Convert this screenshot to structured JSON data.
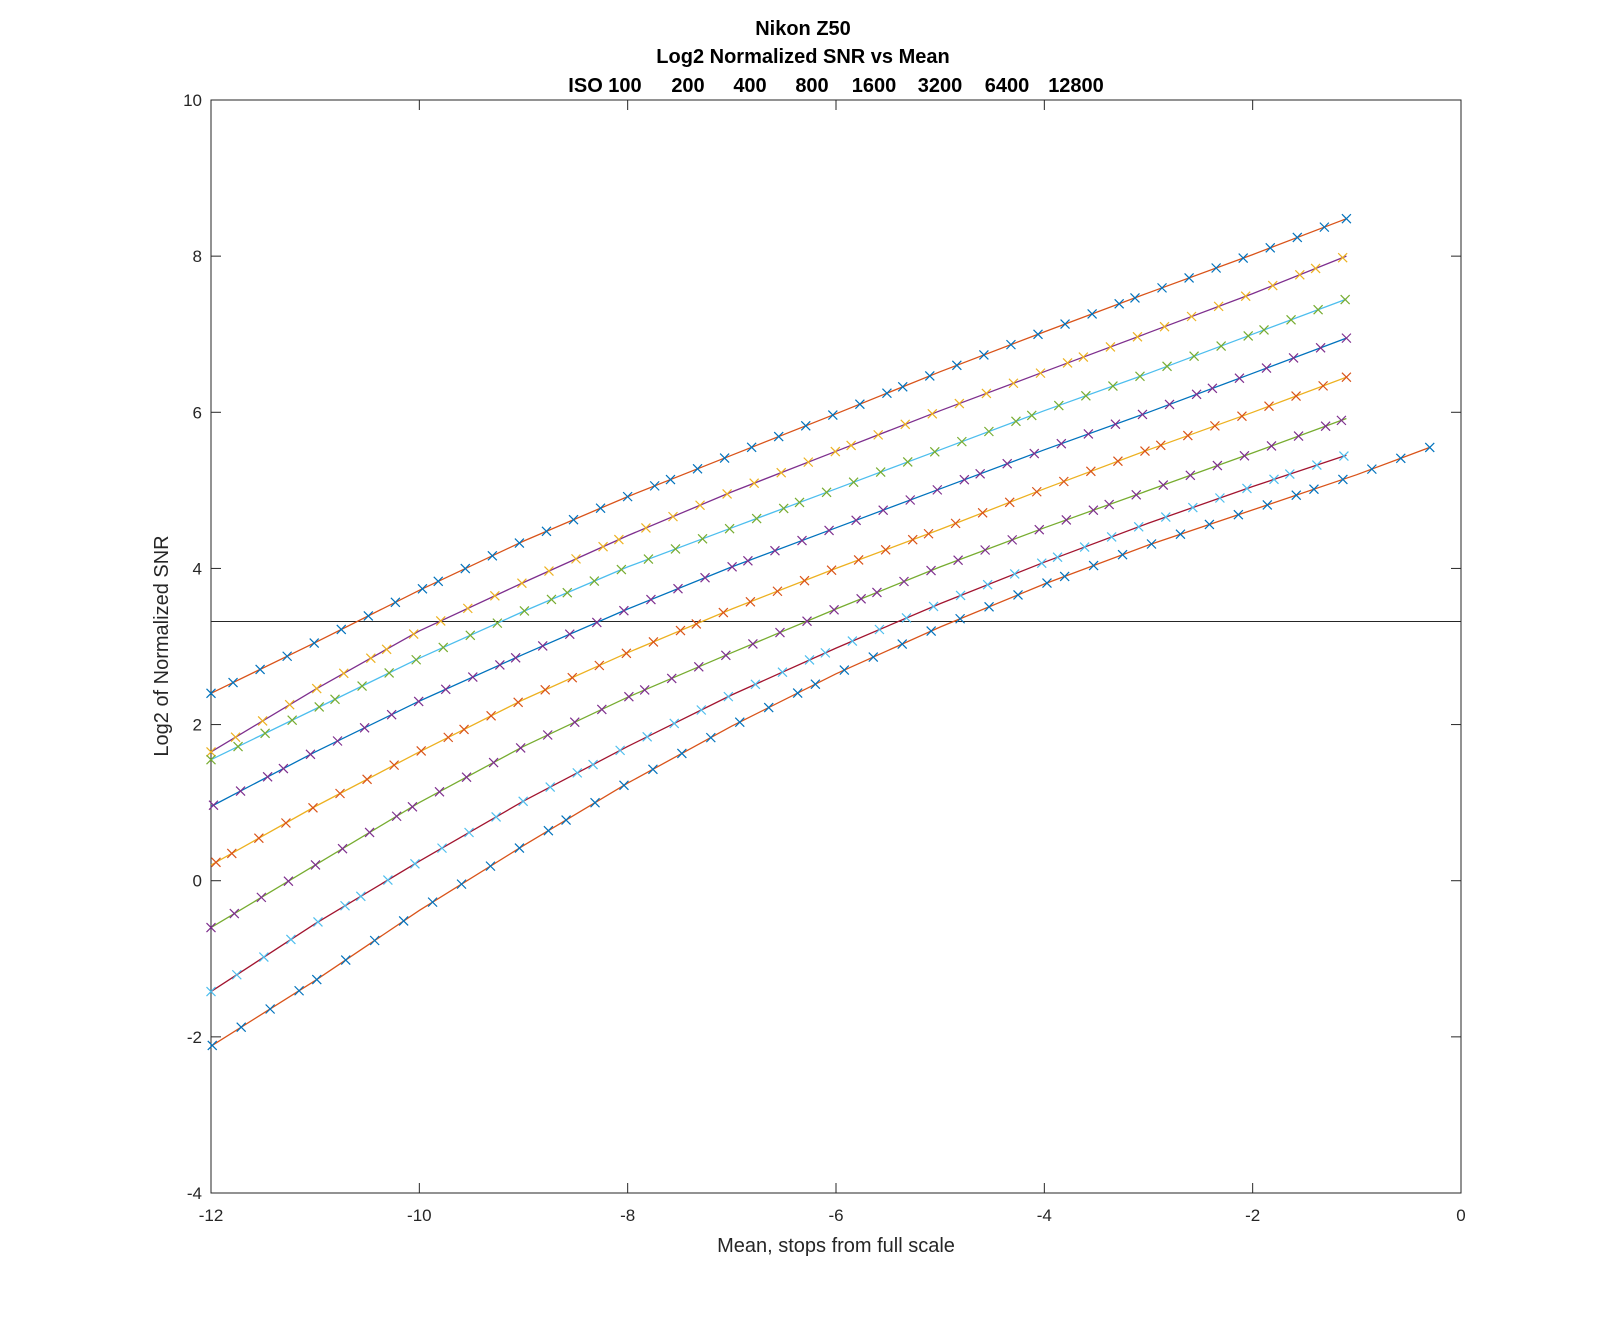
{
  "chart_data": {
    "type": "line",
    "title": "Nikon Z50",
    "subtitle": "Log2 Normalized SNR vs Mean",
    "iso_labels": [
      "ISO 100",
      "200",
      "400",
      "800",
      "1600",
      "3200",
      "6400",
      "12800"
    ],
    "xlabel": "Mean, stops from full scale",
    "ylabel": "Log2 of Normalized SNR",
    "xlim": [
      -12,
      0
    ],
    "ylim": [
      -4,
      10
    ],
    "xticks": [
      "-12",
      "-10",
      "-8",
      "-6",
      "-4",
      "-2",
      "0"
    ],
    "yticks": [
      "-4",
      "-2",
      "0",
      "2",
      "4",
      "6",
      "8",
      "10"
    ],
    "reference_line_y": 3.32,
    "grid": false,
    "series": [
      {
        "color": "#D95319",
        "marker_color": "#0072BD",
        "x_end": -1.1,
        "fit": [
          [
            -12,
            2.4
          ],
          [
            -11,
            3.05
          ],
          [
            -10,
            3.72
          ],
          [
            -9,
            4.35
          ],
          [
            -8,
            4.92
          ],
          [
            -7,
            5.45
          ],
          [
            -6,
            5.98
          ],
          [
            -5,
            6.52
          ],
          [
            -4,
            7.03
          ],
          [
            -3,
            7.53
          ],
          [
            -2,
            8.02
          ],
          [
            -1.1,
            8.48
          ]
        ]
      },
      {
        "color": "#7E2F8E",
        "marker_color": "#EDB120",
        "x_end": -1.1,
        "fit": [
          [
            -12,
            1.65
          ],
          [
            -11,
            2.45
          ],
          [
            -10,
            3.2
          ],
          [
            -9,
            3.82
          ],
          [
            -8,
            4.42
          ],
          [
            -7,
            4.98
          ],
          [
            -6,
            5.5
          ],
          [
            -5,
            6.02
          ],
          [
            -4,
            6.52
          ],
          [
            -3,
            7.02
          ],
          [
            -2,
            7.52
          ],
          [
            -1.1,
            8.0
          ]
        ]
      },
      {
        "color": "#4DBEEE",
        "marker_color": "#77AC30",
        "x_end": -1.1,
        "fit": [
          [
            -12,
            1.55
          ],
          [
            -11,
            2.2
          ],
          [
            -10,
            2.85
          ],
          [
            -9,
            3.45
          ],
          [
            -8,
            4.02
          ],
          [
            -7,
            4.52
          ],
          [
            -6,
            5.02
          ],
          [
            -5,
            5.52
          ],
          [
            -4,
            6.02
          ],
          [
            -3,
            6.5
          ],
          [
            -2,
            7.0
          ],
          [
            -1.1,
            7.45
          ]
        ]
      },
      {
        "color": "#0072BD",
        "marker_color": "#7E2F8E",
        "x_end": -1.1,
        "fit": [
          [
            -12,
            0.95
          ],
          [
            -11,
            1.65
          ],
          [
            -10,
            2.3
          ],
          [
            -9,
            2.9
          ],
          [
            -8,
            3.48
          ],
          [
            -7,
            4.02
          ],
          [
            -6,
            4.52
          ],
          [
            -5,
            5.02
          ],
          [
            -4,
            5.52
          ],
          [
            -3,
            6.0
          ],
          [
            -2,
            6.5
          ],
          [
            -1.1,
            6.95
          ]
        ]
      },
      {
        "color": "#EDB120",
        "marker_color": "#D95319",
        "x_end": -1.1,
        "fit": [
          [
            -12,
            0.2
          ],
          [
            -11,
            0.95
          ],
          [
            -10,
            1.65
          ],
          [
            -9,
            2.32
          ],
          [
            -8,
            2.92
          ],
          [
            -7,
            3.48
          ],
          [
            -6,
            4.0
          ],
          [
            -5,
            4.5
          ],
          [
            -4,
            5.02
          ],
          [
            -3,
            5.52
          ],
          [
            -2,
            6.0
          ],
          [
            -1.1,
            6.45
          ]
        ]
      },
      {
        "color": "#77AC30",
        "marker_color": "#7E2F8E",
        "x_end": -1.1,
        "fit": [
          [
            -12,
            -0.6
          ],
          [
            -11,
            0.2
          ],
          [
            -10,
            1.0
          ],
          [
            -9,
            1.72
          ],
          [
            -8,
            2.35
          ],
          [
            -7,
            2.92
          ],
          [
            -6,
            3.48
          ],
          [
            -5,
            4.02
          ],
          [
            -4,
            4.52
          ],
          [
            -3,
            5.0
          ],
          [
            -2,
            5.48
          ],
          [
            -1.1,
            5.92
          ]
        ]
      },
      {
        "color": "#A2142F",
        "marker_color": "#4DBEEE",
        "x_end": -1.1,
        "fit": [
          [
            -12,
            -1.42
          ],
          [
            -11,
            -0.55
          ],
          [
            -10,
            0.25
          ],
          [
            -9,
            1.02
          ],
          [
            -8,
            1.72
          ],
          [
            -7,
            2.38
          ],
          [
            -6,
            2.98
          ],
          [
            -5,
            3.55
          ],
          [
            -4,
            4.08
          ],
          [
            -3,
            4.58
          ],
          [
            -2,
            5.05
          ],
          [
            -1.1,
            5.45
          ]
        ]
      },
      {
        "color": "#D95319",
        "marker_color": "#0072BD",
        "x_end": -0.3,
        "fit": [
          [
            -12,
            -2.12
          ],
          [
            -11,
            -1.28
          ],
          [
            -10,
            -0.38
          ],
          [
            -9,
            0.45
          ],
          [
            -8,
            1.25
          ],
          [
            -7,
            1.98
          ],
          [
            -6,
            2.65
          ],
          [
            -5,
            3.25
          ],
          [
            -4,
            3.8
          ],
          [
            -3,
            4.3
          ],
          [
            -2,
            4.75
          ],
          [
            -1,
            5.2
          ],
          [
            -0.3,
            5.55
          ]
        ]
      }
    ]
  }
}
